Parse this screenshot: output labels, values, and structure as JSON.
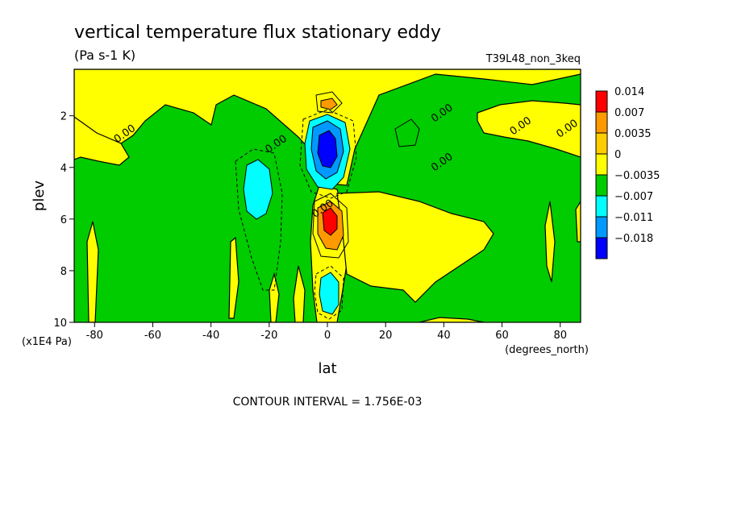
{
  "chart_data": {
    "type": "heatmap",
    "title": "vertical temperature flux stationary eddy",
    "units": "(Pa s-1 K)",
    "run_label": "T39L48_non_3keq",
    "xlabel": "lat",
    "x_units": "(degrees_north)",
    "ylabel": "plev",
    "y_units": "(x1E4 Pa)",
    "xlim": [
      -87,
      87
    ],
    "ylim": [
      10,
      0.2
    ],
    "x_ticks": [
      -80,
      -60,
      -40,
      -20,
      0,
      20,
      40,
      60,
      80
    ],
    "y_ticks": [
      2,
      4,
      6,
      8,
      10
    ],
    "contour_interval": "CONTOUR INTERVAL = 1.756E-03",
    "contour_labels": [
      {
        "text": "0.00",
        "lat": -69,
        "plev": 2.8
      },
      {
        "text": "0.00",
        "lat": -17,
        "plev": 3.2
      },
      {
        "text": "0.00",
        "lat": 40,
        "plev": 2.0
      },
      {
        "text": "0.00",
        "lat": 40,
        "plev": 3.9
      },
      {
        "text": "0.00",
        "lat": 67,
        "plev": 2.5
      },
      {
        "text": "0.00",
        "lat": 83,
        "plev": 2.6
      },
      {
        "text": "0.00",
        "lat": -1,
        "plev": 5.7
      }
    ],
    "legend": {
      "labels": [
        "0.014",
        "0.007",
        "0.0035",
        "0",
        "-0.0035",
        "-0.007",
        "-0.011",
        "-0.018"
      ],
      "colors": [
        "#ff0000",
        "#ff9900",
        "#ffcc00",
        "#ffff00",
        "#00cc00",
        "#00ffff",
        "#0099ff",
        "#0000ff"
      ]
    },
    "fill_colors": {
      "strong_positive": "#ff0000",
      "medium_positive": "#ff9900",
      "weak_positive": "#ffff00",
      "weak_negative": "#00cc00",
      "medium_negative": "#00ffff",
      "strong_negative": "#0066ff",
      "strongest_negative": "#0000ff"
    },
    "features": [
      {
        "sign": "negative",
        "level": "-0.018",
        "lat": 0,
        "plev": 3.3
      },
      {
        "sign": "negative",
        "level": "-0.007",
        "lat": -27,
        "plev": 4.7
      },
      {
        "sign": "positive",
        "level": "0.014",
        "lat": 0,
        "plev": 6.2
      },
      {
        "sign": "negative",
        "level": "-0.007",
        "lat": 1,
        "plev": 8.8
      }
    ]
  }
}
